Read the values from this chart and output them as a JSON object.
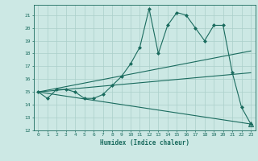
{
  "title": "",
  "xlabel": "Humidex (Indice chaleur)",
  "bg_color": "#cce8e4",
  "line_color": "#1a6b5e",
  "grid_color": "#aacfca",
  "xlim": [
    -0.5,
    23.5
  ],
  "ylim": [
    12,
    21.8
  ],
  "yticks": [
    12,
    13,
    14,
    15,
    16,
    17,
    18,
    19,
    20,
    21
  ],
  "xticks": [
    0,
    1,
    2,
    3,
    4,
    5,
    6,
    7,
    8,
    9,
    10,
    11,
    12,
    13,
    14,
    15,
    16,
    17,
    18,
    19,
    20,
    21,
    22,
    23
  ],
  "series1_x": [
    0,
    1,
    2,
    3,
    4,
    5,
    6,
    7,
    8,
    9,
    10,
    11,
    12,
    13,
    14,
    15,
    16,
    17,
    18,
    19,
    20,
    21,
    22,
    23
  ],
  "series1_y": [
    15.0,
    14.5,
    15.2,
    15.2,
    15.0,
    14.5,
    14.5,
    14.8,
    15.5,
    16.2,
    17.2,
    18.5,
    21.5,
    18.0,
    20.2,
    21.2,
    21.0,
    20.0,
    19.0,
    20.2,
    20.2,
    16.5,
    13.8,
    12.5
  ],
  "series2_x": [
    0,
    23
  ],
  "series2_y": [
    15.0,
    18.2
  ],
  "series3_x": [
    0,
    23
  ],
  "series3_y": [
    15.0,
    16.5
  ],
  "series4_x": [
    0,
    23
  ],
  "series4_y": [
    15.0,
    12.5
  ]
}
